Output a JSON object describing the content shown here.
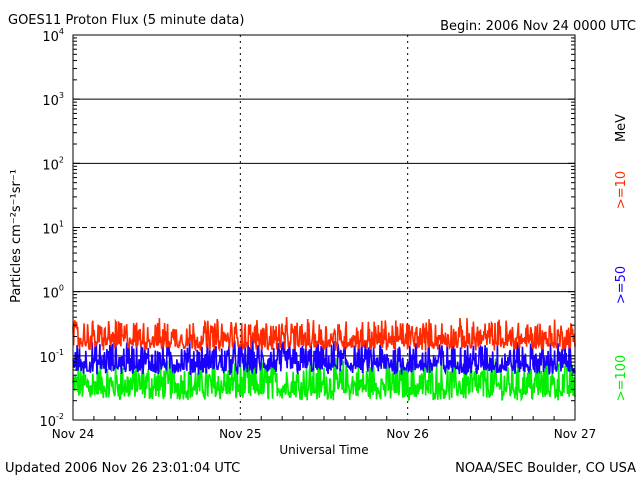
{
  "chart_data": {
    "type": "line",
    "title": "GOES11 Proton Flux (5 minute data)",
    "subtitle": "Begin: 2006 Nov 24 0000 UTC",
    "xlabel": "Universal Time",
    "ylabel": "Particles cm⁻²s⁻¹sr⁻¹",
    "y_scale": "log",
    "ylim": [
      0.01,
      10000
    ],
    "grid": true,
    "x_ticks": [
      "Nov 24",
      "Nov 25",
      "Nov 26",
      "Nov 27"
    ],
    "xlim_days": [
      0,
      3
    ],
    "y_tick_exponents": [
      -2,
      -1,
      0,
      1,
      2,
      3,
      4
    ],
    "legend_placement": "right",
    "legend_unit": "MeV",
    "series": [
      {
        "name": ">=10",
        "color": "#ff2a00",
        "typical_range": [
          0.12,
          0.35
        ]
      },
      {
        "name": ">=50",
        "color": "#1a00ff",
        "typical_range": [
          0.05,
          0.16
        ]
      },
      {
        "name": ">=100",
        "color": "#00ee00",
        "typical_range": [
          0.02,
          0.08
        ]
      }
    ]
  },
  "footer": {
    "updated": "Updated 2006 Nov 26 23:01:04 UTC",
    "credit": "NOAA/SEC Boulder, CO USA"
  }
}
